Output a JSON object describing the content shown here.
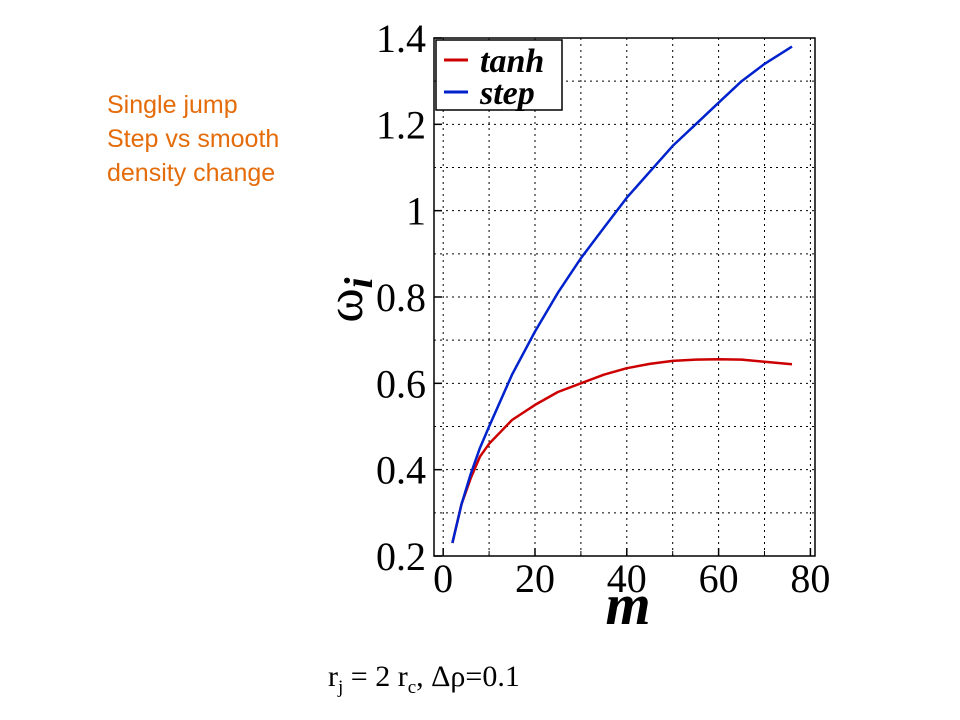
{
  "note": {
    "lines": [
      "Single jump",
      "Step vs smooth",
      "density change"
    ],
    "color": "#e46c0a"
  },
  "caption": {
    "r": "r",
    "j": "j",
    "eq": " = 2 r",
    "c": "c",
    "rest": ", Δρ=0.1"
  },
  "chart_data": {
    "type": "line",
    "xlabel": "m",
    "ylabel_main": "ω",
    "ylabel_sub": "i",
    "xlim": [
      -2,
      81
    ],
    "ylim": [
      0.2,
      1.4
    ],
    "xticks": [
      0,
      20,
      40,
      60,
      80
    ],
    "xtick_labels": [
      "0",
      "20",
      "40",
      "60",
      "80"
    ],
    "yticks": [
      0.2,
      0.4,
      0.6,
      0.8,
      1.0,
      1.2,
      1.4
    ],
    "ytick_labels": [
      "0.2",
      "0.4",
      "0.6",
      "0.8",
      "1",
      "1.2",
      "1.4"
    ],
    "grid": true,
    "legend_position": "top-left",
    "series": [
      {
        "name": "tanh",
        "color": "#cc0000",
        "x": [
          2,
          4,
          6,
          8,
          10,
          15,
          20,
          25,
          30,
          35,
          40,
          45,
          50,
          55,
          60,
          65,
          70,
          76
        ],
        "y": [
          0.23,
          0.32,
          0.38,
          0.43,
          0.46,
          0.515,
          0.55,
          0.58,
          0.6,
          0.62,
          0.635,
          0.645,
          0.652,
          0.655,
          0.656,
          0.655,
          0.65,
          0.644
        ]
      },
      {
        "name": "step",
        "color": "#0022cc",
        "x": [
          2,
          4,
          6,
          8,
          10,
          15,
          20,
          25,
          30,
          35,
          40,
          45,
          50,
          55,
          60,
          65,
          70,
          76
        ],
        "y": [
          0.23,
          0.32,
          0.39,
          0.45,
          0.5,
          0.62,
          0.72,
          0.81,
          0.89,
          0.96,
          1.03,
          1.09,
          1.15,
          1.2,
          1.25,
          1.3,
          1.34,
          1.38
        ]
      }
    ]
  }
}
